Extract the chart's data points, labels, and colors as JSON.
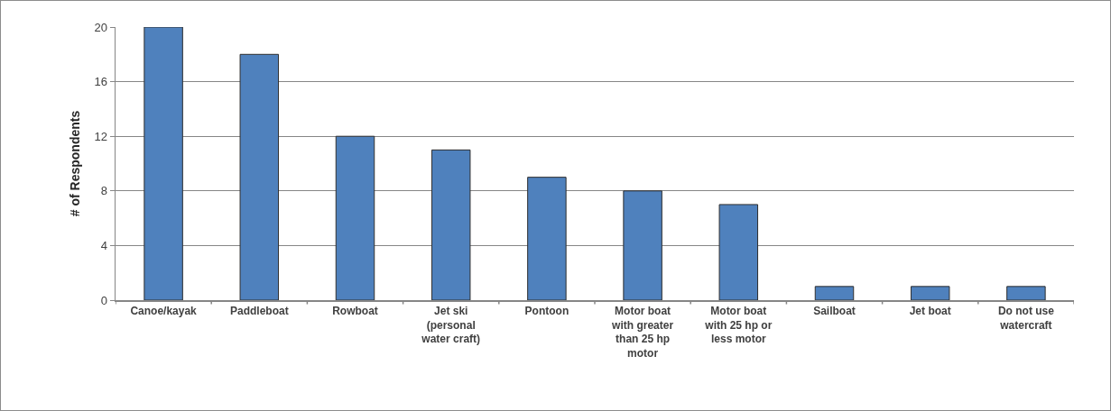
{
  "chart_data": {
    "type": "bar",
    "ylabel": "# of Respondents",
    "categories": [
      "Canoe/kayak",
      "Paddleboat",
      "Rowboat",
      "Jet ski (personal water craft)",
      "Pontoon",
      "Motor boat with greater than 25 hp motor",
      "Motor boat with 25 hp or less motor",
      "Sailboat",
      "Jet boat",
      "Do not use watercraft"
    ],
    "values": [
      20,
      18,
      12,
      11,
      9,
      8,
      7,
      1,
      1,
      1
    ],
    "color": "#4f81bd",
    "ylim": [
      0,
      20
    ],
    "yticks": [
      0,
      4,
      8,
      12,
      16,
      20
    ],
    "grid": "y"
  }
}
